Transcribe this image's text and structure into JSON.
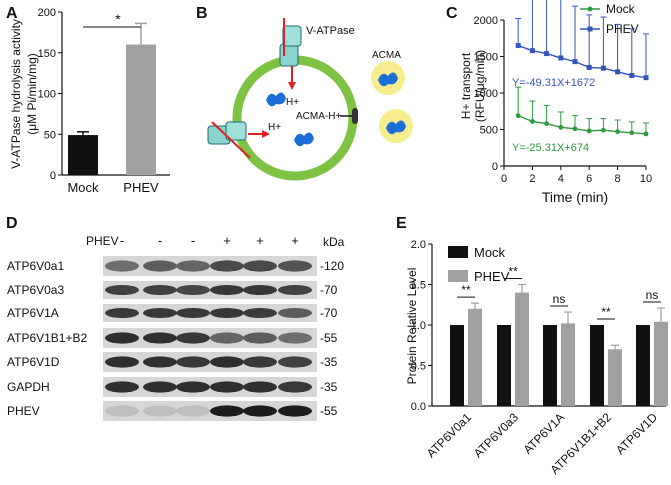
{
  "panels": {
    "A": "A",
    "B": "B",
    "C": "C",
    "D": "D",
    "E": "E"
  },
  "panel_a": {
    "ylabel_line1": "V-ATPase hydrolysis activity",
    "ylabel_line2": "(μM Pi/min/mg)",
    "sig": "*"
  },
  "panel_b": {
    "vatpase_label": "V-ATPase",
    "hplus_top": "H+",
    "hplus_left": "H+",
    "acma_label": "ACMA",
    "acma_h_label": "ACMA-H+",
    "colors": {
      "membrane": "#7dc242",
      "acma_glow": "#f6ee8e",
      "molecule": "#1c6fd6",
      "arrow": "#e02020"
    }
  },
  "panel_c": {
    "ylabel_line1": "H+ transport",
    "ylabel_line2": "(RFU/μg/min)",
    "legend": [
      "Mock",
      "PHEV"
    ],
    "eq_phev": "Y=-49.31X+1672",
    "eq_mock": "Y=-25.31X+674",
    "colors": {
      "mock": "#2e9a3e",
      "phev": "#3355bb"
    }
  },
  "panel_d": {
    "treatment_label": "PHEV",
    "lane_signs": [
      "-",
      "-",
      "-",
      "+",
      "+",
      "+"
    ],
    "kda_label": "kDa",
    "bands": [
      {
        "name": "ATP6V0a1",
        "kda": "-120"
      },
      {
        "name": "ATP6V0a3",
        "kda": "-70"
      },
      {
        "name": "ATP6V1A",
        "kda": "-70"
      },
      {
        "name": "ATP6V1B1+B2",
        "kda": "-55"
      },
      {
        "name": "ATP6V1D",
        "kda": "-35"
      },
      {
        "name": "GAPDH",
        "kda": "-35"
      },
      {
        "name": "PHEV",
        "kda": "-55"
      }
    ]
  },
  "panel_e": {
    "ylabel": "Protein Relative Level",
    "legend": [
      "Mock",
      "PHEV"
    ],
    "significance": [
      "**",
      "**",
      "ns",
      "**",
      "ns"
    ]
  },
  "chart_data": [
    {
      "panel": "A",
      "type": "bar",
      "categories": [
        "Mock",
        "PHEV"
      ],
      "values": [
        49,
        160
      ],
      "errors": [
        4,
        26
      ],
      "ylim": [
        0,
        200
      ],
      "yticks": [
        0,
        50,
        100,
        150,
        200
      ],
      "colors": [
        "#111111",
        "#a0a0a0"
      ]
    },
    {
      "panel": "C",
      "type": "line",
      "xlabel": "Time (min)",
      "xlim": [
        0,
        10
      ],
      "ylim": [
        0,
        2000
      ],
      "xticks": [
        0,
        2,
        4,
        6,
        8,
        10
      ],
      "yticks": [
        0,
        500,
        1000,
        1500,
        2000
      ],
      "x": [
        1,
        2,
        3,
        4,
        5,
        6,
        7,
        8,
        9,
        10
      ],
      "series": [
        {
          "name": "Mock",
          "values": [
            690,
            610,
            580,
            530,
            510,
            480,
            490,
            470,
            455,
            440
          ],
          "errors": [
            390,
            280,
            250,
            210,
            180,
            170,
            160,
            160,
            150,
            150
          ]
        },
        {
          "name": "PHEV",
          "values": [
            1650,
            1580,
            1540,
            1480,
            1430,
            1350,
            1340,
            1290,
            1240,
            1210
          ],
          "errors": [
            370,
            870,
            840,
            800,
            760,
            720,
            700,
            650,
            640,
            600
          ]
        }
      ]
    },
    {
      "panel": "E",
      "type": "bar",
      "categories": [
        "ATP6V0a1",
        "ATP6V0a3",
        "ATP6V1A",
        "ATP6V1B1+B2",
        "ATP6V1D"
      ],
      "ylim": [
        0,
        2.0
      ],
      "yticks": [
        0.0,
        0.5,
        1.0,
        1.5,
        2.0
      ],
      "series": [
        {
          "name": "Mock",
          "values": [
            1.0,
            1.0,
            1.0,
            1.0,
            1.0
          ],
          "errors": [
            0,
            0,
            0,
            0,
            0
          ]
        },
        {
          "name": "PHEV",
          "values": [
            1.2,
            1.4,
            1.02,
            0.7,
            1.04
          ],
          "errors": [
            0.07,
            0.1,
            0.14,
            0.05,
            0.17
          ]
        }
      ],
      "colors": [
        "#111111",
        "#a0a0a0"
      ]
    }
  ]
}
